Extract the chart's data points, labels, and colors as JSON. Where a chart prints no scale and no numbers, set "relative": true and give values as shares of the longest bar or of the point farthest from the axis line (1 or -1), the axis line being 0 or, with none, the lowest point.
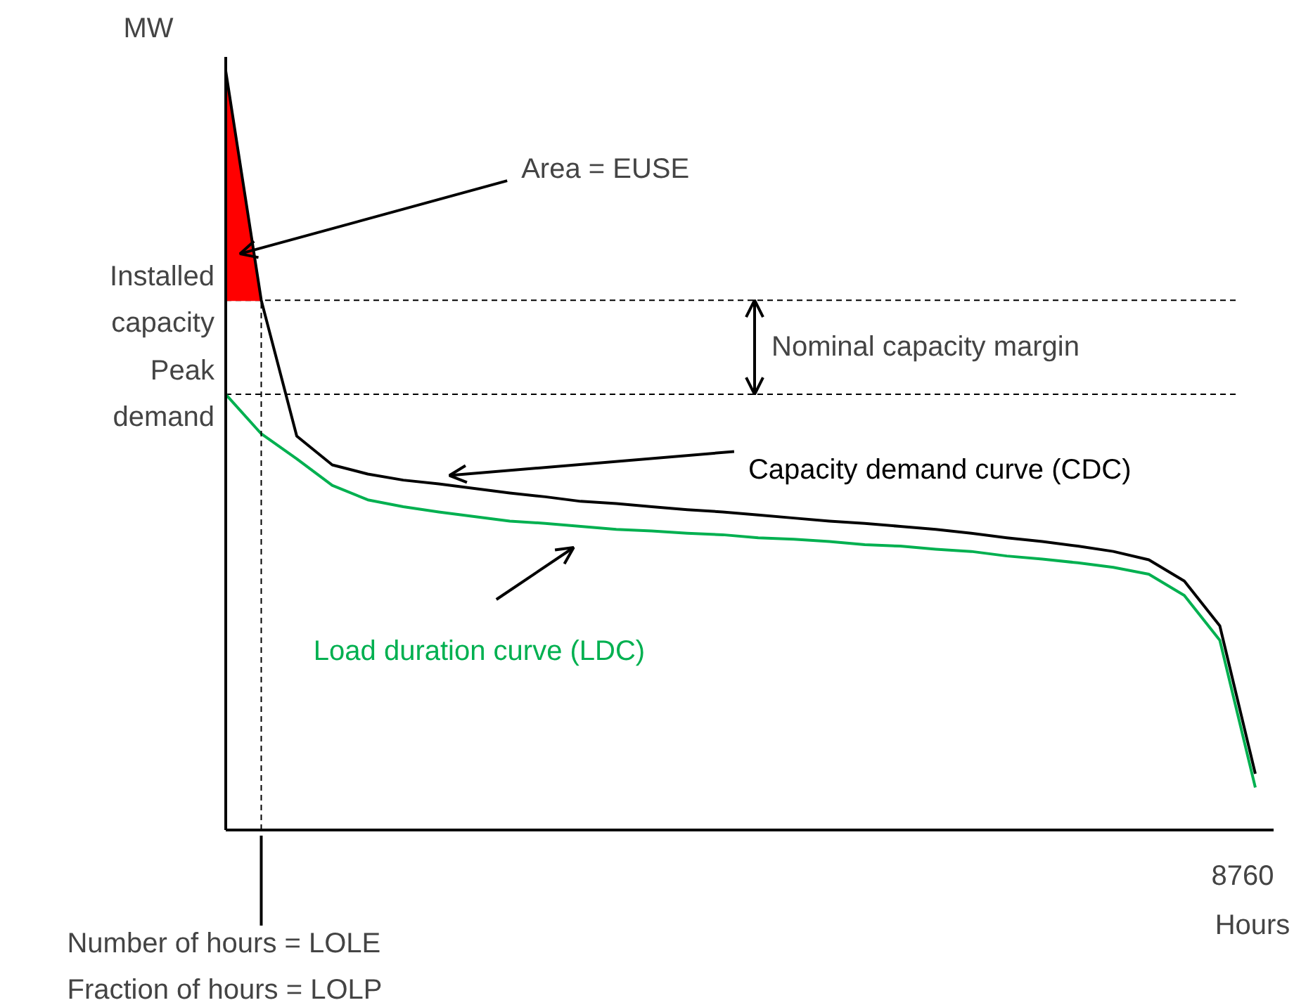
{
  "chart_data": {
    "type": "line",
    "relative": true,
    "xlabel": "Hours",
    "ylabel": "MW",
    "categories": [
      null,
      null,
      null,
      null,
      null,
      null,
      null,
      null,
      null,
      null,
      null,
      null,
      null,
      null,
      null,
      null,
      null,
      null,
      null,
      null,
      null,
      null,
      null,
      null,
      null,
      null,
      null,
      null,
      null,
      null
    ],
    "series": [
      {
        "type": "area",
        "color": "#ff0000",
        "values": [
          1.0,
          0.698,
          null,
          null,
          null,
          null,
          null,
          null,
          null,
          null,
          null,
          null,
          null,
          null,
          null,
          null,
          null,
          null,
          null,
          null,
          null,
          null,
          null,
          null,
          null,
          null,
          null,
          null,
          null,
          null
        ]
      },
      {
        "name": "Capacity demand curve (CDC)",
        "color": "#000000",
        "values": [
          1.0,
          0.698,
          0.519,
          0.481,
          0.469,
          0.461,
          0.456,
          0.45,
          0.444,
          0.439,
          0.433,
          0.43,
          0.426,
          0.422,
          0.419,
          0.415,
          0.411,
          0.407,
          0.404,
          0.4,
          0.396,
          0.391,
          0.385,
          0.38,
          0.374,
          0.367,
          0.356,
          0.328,
          0.269,
          0.074
        ]
      },
      {
        "name": "Load duration curve (LDC)",
        "color": "#00b050",
        "values": [
          0.574,
          0.522,
          0.489,
          0.454,
          0.435,
          0.426,
          0.419,
          0.413,
          0.407,
          0.404,
          0.4,
          0.396,
          0.394,
          0.391,
          0.389,
          0.385,
          0.383,
          0.38,
          0.376,
          0.374,
          0.37,
          0.367,
          0.361,
          0.357,
          0.352,
          0.346,
          0.337,
          0.309,
          0.25,
          0.056
        ]
      }
    ],
    "ref_lines": [
      {
        "axis": "y",
        "value": 0.698,
        "label": "Installed capacity",
        "line_style": "dashed"
      },
      {
        "axis": "y",
        "value": 0.574,
        "label": "Peak demand",
        "line_style": "dashed"
      }
    ],
    "annotations": [
      "Area = EUSE",
      "Nominal capacity margin",
      "Number of hours = LOLE\nFraction of hours = LOLP",
      "8760"
    ]
  }
}
